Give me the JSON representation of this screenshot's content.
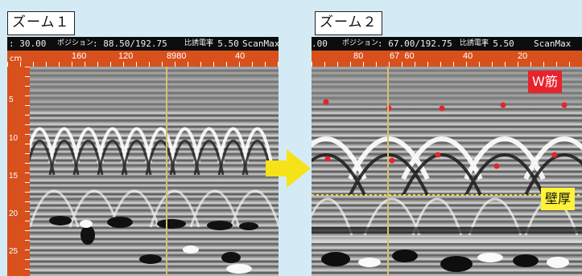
{
  "zoom1": {
    "title": "ズーム１",
    "status": {
      "left_value": ": 30.00",
      "position_label": "ポジション",
      "position_value": ": 88.50/192.75",
      "end_label": "ScanMax"
    },
    "ruler_top": [
      "160",
      "120",
      "8980",
      "40"
    ],
    "ruler_left_unit": "cm",
    "ruler_left": [
      "5",
      "10",
      "15",
      "20",
      "25"
    ]
  },
  "zoom2": {
    "title": "ズーム２",
    "status": {
      "left_value": ".00",
      "position_label": "ポジション",
      "position_value": ": 67.00/192.75",
      "rate_label": "比誘電率",
      "rate_value": ": 5.50",
      "end_label": "ScanMax"
    },
    "ruler_top": [
      "80",
      "67  60",
      "40",
      "20"
    ]
  },
  "zoom1_rate": {
    "rate_label": "比誘電率",
    "rate_value": ": 5.50"
  },
  "tags": {
    "rebar": "W筋",
    "wall_thickness": "壁厚"
  },
  "colors": {
    "ruler": "#d8501c",
    "arrow": "#f5e318",
    "marker": "#e8232c",
    "wall_line": "#f2e040",
    "background": "#d4ebf6"
  }
}
